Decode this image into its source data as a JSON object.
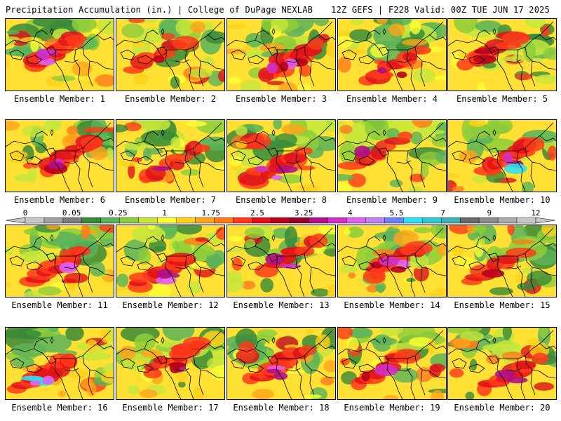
{
  "header": {
    "title_left": "Precipitation Accumulation (in.) | College of DuPage NEXLAB",
    "title_right": "12Z GEFS | F228 Valid: 00Z TUE JUN 17 2025"
  },
  "colorbar": {
    "tick_labels": [
      "0",
      "0.05",
      "0.25",
      "1",
      "1.75",
      "2.5",
      "3.25",
      "4",
      "5.5",
      "7",
      "9",
      "12"
    ],
    "colors": [
      "#c8c8c8",
      "#a0a0a0",
      "#7c7c7c",
      "#3a8a3a",
      "#5ab35a",
      "#8dcc3a",
      "#c6e63c",
      "#ffff33",
      "#ffd11a",
      "#ffa31a",
      "#ff7a1a",
      "#ff3a1a",
      "#e0101a",
      "#b8001a",
      "#900028",
      "#b01088",
      "#d030c8",
      "#e060f0",
      "#c080f0",
      "#7080f8",
      "#30e0f0",
      "#30c8d0",
      "#40b0b0",
      "#6a6a6a",
      "#8c8c8c",
      "#aaaaaa",
      "#c8c8c8"
    ]
  },
  "members": [
    {
      "label": "Ensemble Member: 1"
    },
    {
      "label": "Ensemble Member: 2"
    },
    {
      "label": "Ensemble Member: 3"
    },
    {
      "label": "Ensemble Member: 4"
    },
    {
      "label": "Ensemble Member: 5"
    },
    {
      "label": "Ensemble Member: 6"
    },
    {
      "label": "Ensemble Member: 7"
    },
    {
      "label": "Ensemble Member: 8"
    },
    {
      "label": "Ensemble Member: 9"
    },
    {
      "label": "Ensemble Member: 10"
    },
    {
      "label": "Ensemble Member: 11"
    },
    {
      "label": "Ensemble Member: 12"
    },
    {
      "label": "Ensemble Member: 13"
    },
    {
      "label": "Ensemble Member: 14"
    },
    {
      "label": "Ensemble Member: 15"
    },
    {
      "label": "Ensemble Member: 16"
    },
    {
      "label": "Ensemble Member: 17"
    },
    {
      "label": "Ensemble Member: 18"
    },
    {
      "label": "Ensemble Member: 19"
    },
    {
      "label": "Ensemble Member: 20"
    }
  ]
}
